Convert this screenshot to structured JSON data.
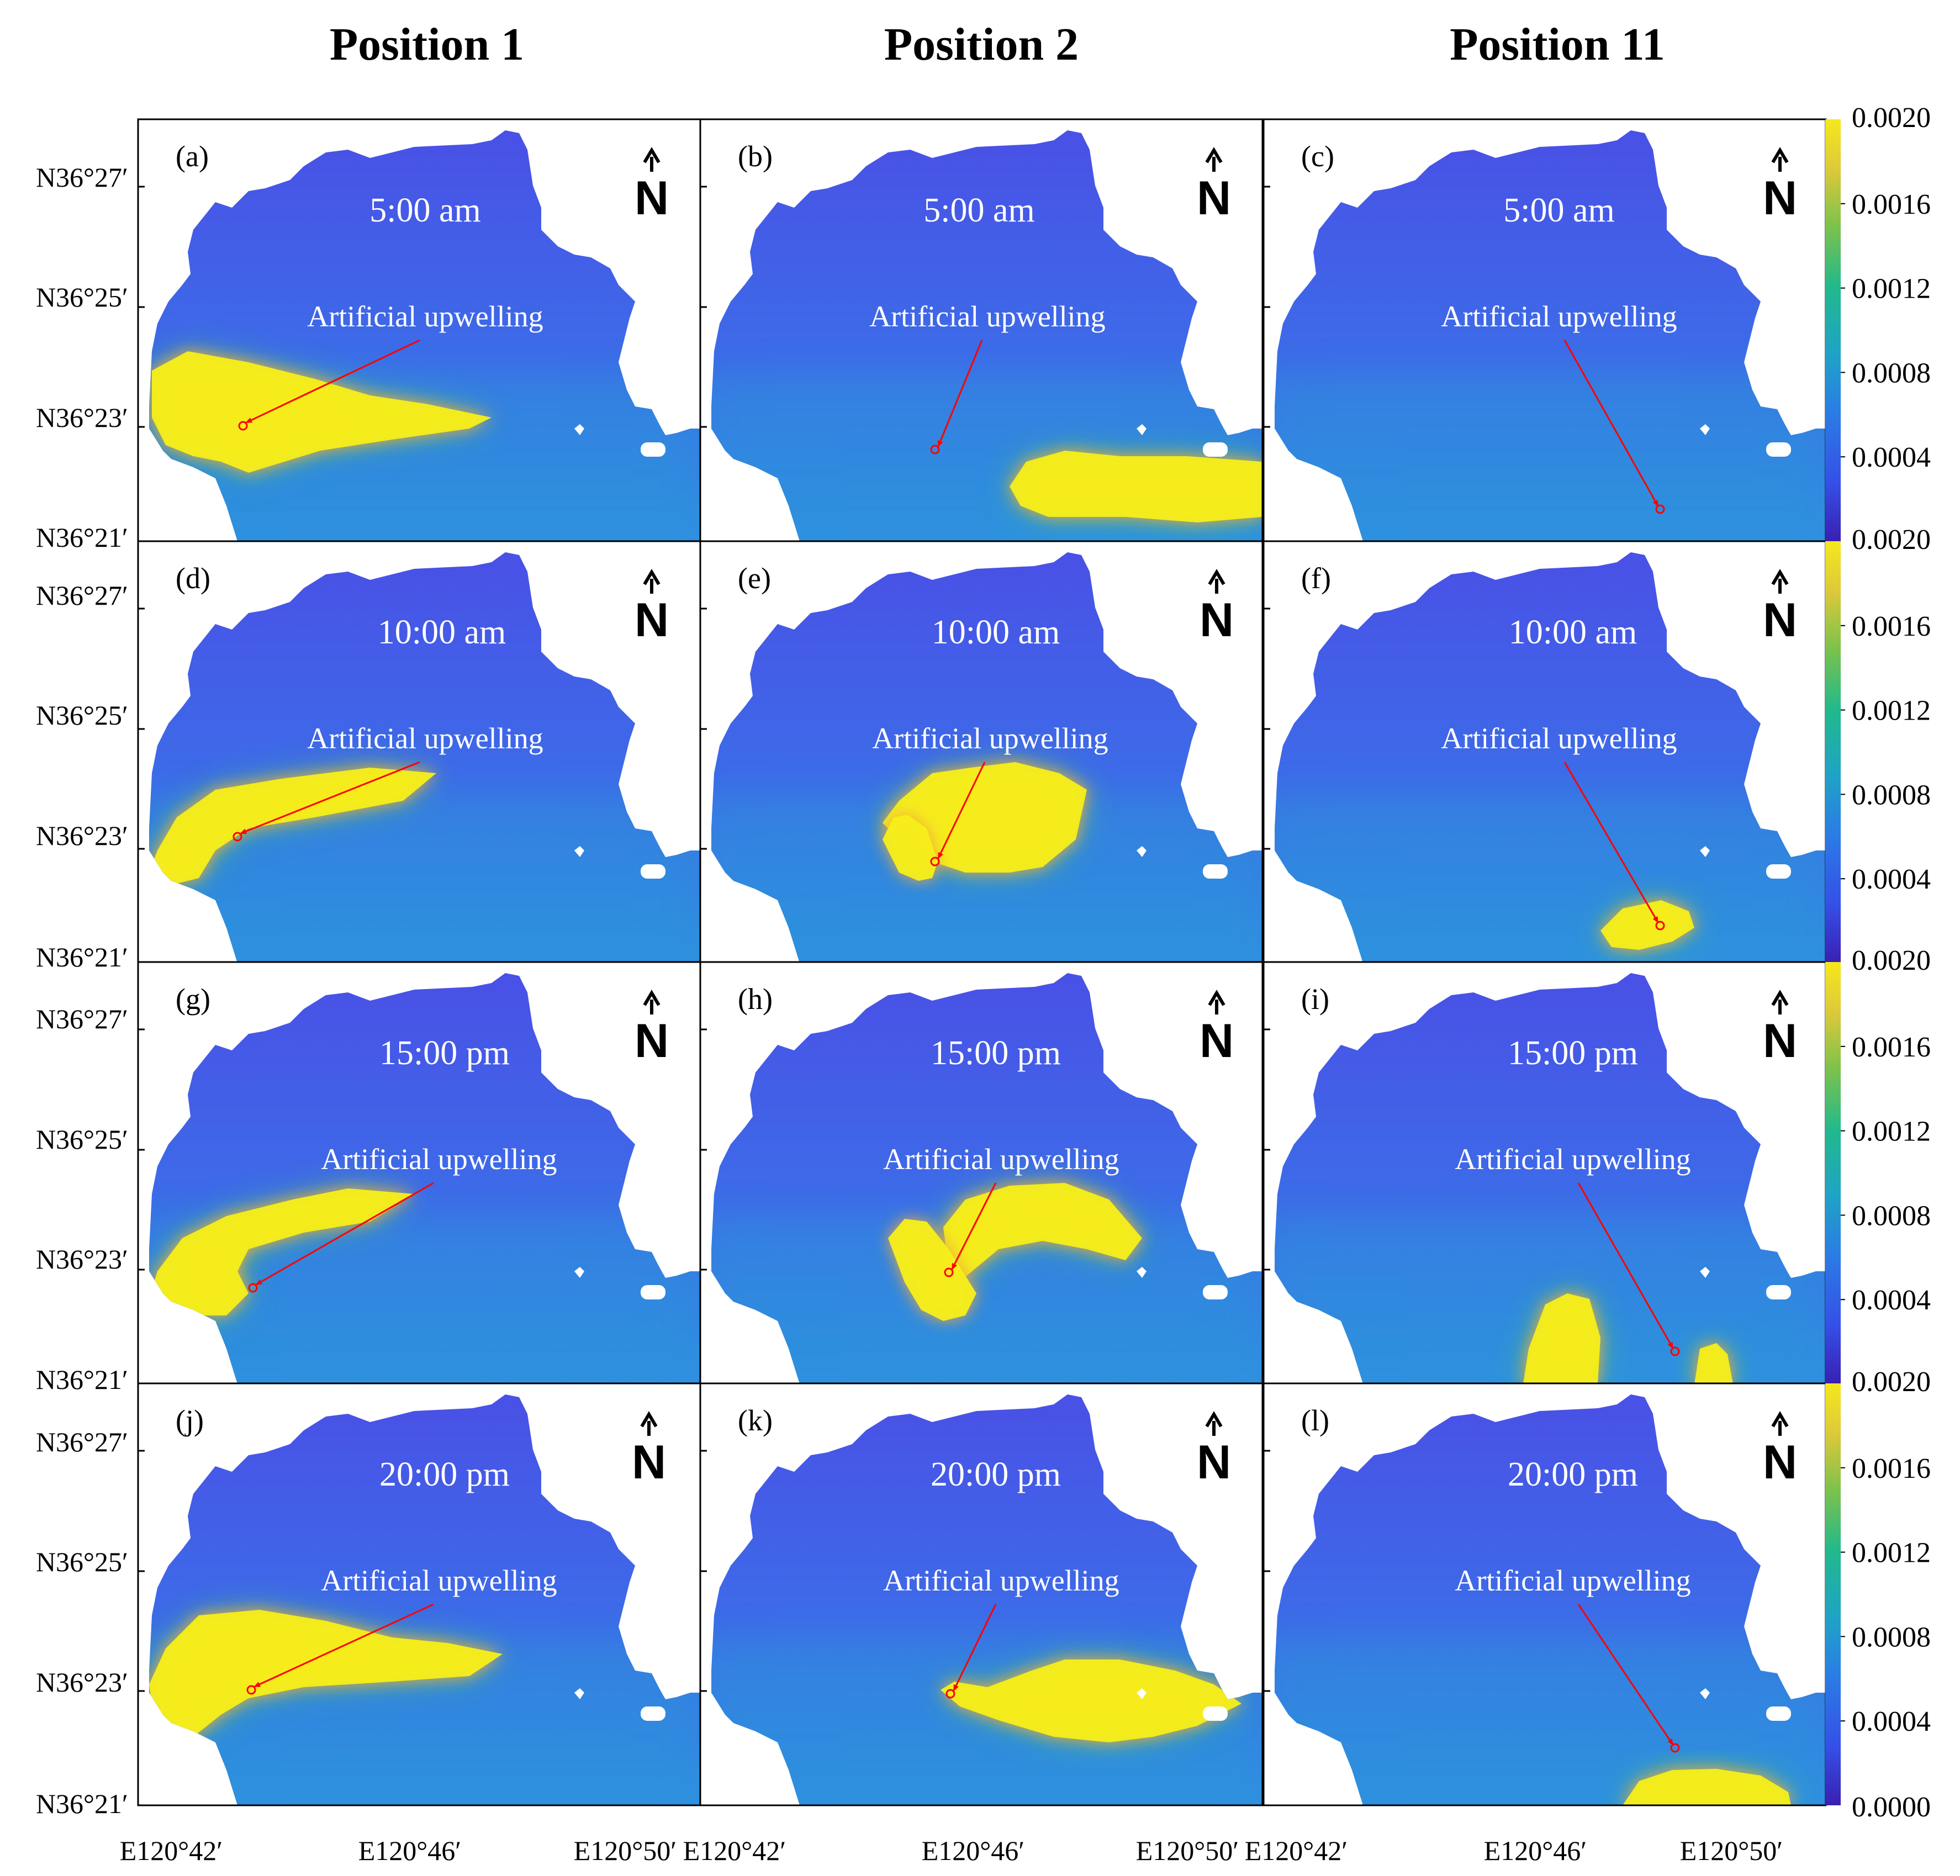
{
  "column_titles": [
    "Position 1",
    "Position 2",
    "Position 11"
  ],
  "latitude_ticks": [
    "N36°27′",
    "N36°25′",
    "N36°23′",
    "N36°21′"
  ],
  "longitude_ticks": [
    "E120°42′",
    "E120°46′",
    "E120°50′"
  ],
  "upwelling_label": "Artificial upwelling",
  "north_symbol": "N",
  "colorbar": {
    "top_label": "0.0020",
    "labels": [
      "0.0016",
      "0.0012",
      "0.0008",
      "0.0004"
    ],
    "bottom_label": "0.0000",
    "colors": [
      "#3a1fb3",
      "#3550e6",
      "#2b7be6",
      "#1fa4c4",
      "#20b98c",
      "#7fc24a",
      "#dcc93a",
      "#f6e81c"
    ],
    "range": [
      0.0,
      0.002
    ]
  },
  "colors": {
    "water_low": "#4a58e8",
    "water_mid": "#2f86e0",
    "plume_core": "#f6ef1a",
    "plume_edge": "#f0a93a",
    "plume_halo": "#4cbf7a",
    "marker": "#ff0000"
  },
  "panels": [
    {
      "tag": "(a)",
      "time": "5:00 am"
    },
    {
      "tag": "(b)",
      "time": "5:00 am"
    },
    {
      "tag": "(c)",
      "time": "5:00 am"
    },
    {
      "tag": "(d)",
      "time": "10:00 am"
    },
    {
      "tag": "(e)",
      "time": "10:00 am"
    },
    {
      "tag": "(f)",
      "time": "10:00 am"
    },
    {
      "tag": "(g)",
      "time": "15:00 pm"
    },
    {
      "tag": "(h)",
      "time": "15:00 pm"
    },
    {
      "tag": "(i)",
      "time": "15:00 pm"
    },
    {
      "tag": "(j)",
      "time": "20:00 pm"
    },
    {
      "tag": "(k)",
      "time": "20:00 pm"
    },
    {
      "tag": "(l)",
      "time": "20:00 pm"
    }
  ]
}
